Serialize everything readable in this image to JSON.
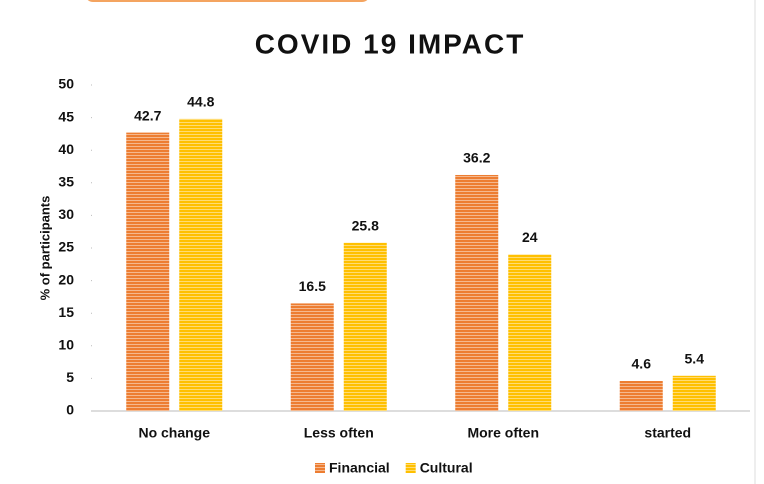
{
  "chart_data": {
    "type": "bar",
    "title": "COVID 19 IMPACT",
    "y_label": "% of participants",
    "categories": [
      "No change",
      "Less often",
      "More often",
      "started"
    ],
    "series": [
      {
        "name": "Financial",
        "color": "#ed7d31",
        "values": [
          42.7,
          16.5,
          36.2,
          4.6
        ]
      },
      {
        "name": "Cultural",
        "color": "#ffc000",
        "values": [
          44.8,
          25.8,
          24,
          5.4
        ]
      }
    ],
    "ylim": [
      0,
      50
    ],
    "yticks": [
      0,
      5,
      10,
      15,
      20,
      25,
      30,
      35,
      40,
      45,
      50
    ],
    "grid": false,
    "legend": "bottom"
  }
}
